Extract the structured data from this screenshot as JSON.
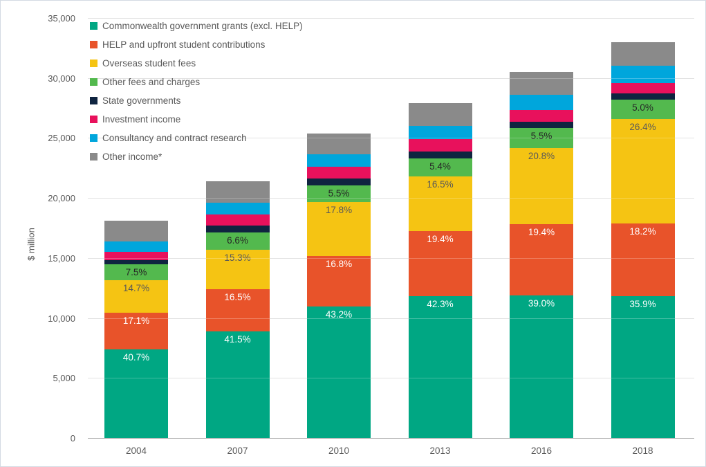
{
  "chart_data": {
    "type": "bar",
    "subtype": "stacked-column",
    "title": "",
    "ylabel": "$ million",
    "xlabel": "",
    "ylim": [
      0,
      35000
    ],
    "ytick_step": 5000,
    "ytick_labels": [
      "0",
      "5,000",
      "10,000",
      "15,000",
      "20,000",
      "25,000",
      "30,000",
      "35,000"
    ],
    "grid": true,
    "legend_position": "top-left-inside",
    "categories": [
      "2004",
      "2007",
      "2010",
      "2013",
      "2016",
      "2018"
    ],
    "totals": [
      18100,
      21400,
      25300,
      27900,
      30500,
      33000
    ],
    "series": [
      {
        "name": "Commonwealth government grants (excl. HELP)",
        "color": "#00a783",
        "label_color": "#ffffff",
        "pct": [
          40.7,
          41.5,
          43.2,
          42.3,
          39.0,
          35.9
        ],
        "labels": [
          "40.7%",
          "41.5%",
          "43.2%",
          "42.3%",
          "39.0%",
          "35.9%"
        ]
      },
      {
        "name": "HELP and upfront student contributions",
        "color": "#e8532a",
        "label_color": "#ffffff",
        "pct": [
          17.1,
          16.5,
          16.8,
          19.4,
          19.4,
          18.2
        ],
        "labels": [
          "17.1%",
          "16.5%",
          "16.8%",
          "19.4%",
          "19.4%",
          "18.2%"
        ]
      },
      {
        "name": "Overseas student fees",
        "color": "#f5c413",
        "label_color": "#595959",
        "pct": [
          14.7,
          15.3,
          17.8,
          16.5,
          20.8,
          26.4
        ],
        "labels": [
          "14.7%",
          "15.3%",
          "17.8%",
          "16.5%",
          "20.8%",
          "26.4%"
        ]
      },
      {
        "name": "Other fees and charges",
        "color": "#53b94e",
        "label_color": "#262626",
        "pct": [
          7.5,
          6.6,
          5.5,
          5.4,
          5.5,
          5.0
        ],
        "labels": [
          "7.5%",
          "6.6%",
          "5.5%",
          "5.4%",
          "5.5%",
          "5.0%"
        ]
      },
      {
        "name": "State governments",
        "color": "#0f2440",
        "label_color": "#ffffff",
        "pct": [
          2.0,
          2.7,
          2.1,
          1.9,
          1.7,
          1.6
        ],
        "labels": null
      },
      {
        "name": "Investment income",
        "color": "#e8115c",
        "label_color": "#ffffff",
        "pct": [
          3.7,
          4.4,
          4.0,
          3.8,
          3.3,
          2.6
        ],
        "labels": null
      },
      {
        "name": "Consultancy and contract research",
        "color": "#00a6dc",
        "label_color": "#ffffff",
        "pct": [
          4.8,
          4.7,
          4.1,
          3.9,
          4.0,
          4.3
        ],
        "labels": null
      },
      {
        "name": "Other income*",
        "color": "#8a8a8a",
        "label_color": "#ffffff",
        "pct": [
          9.5,
          8.4,
          6.7,
          6.9,
          6.3,
          6.0
        ],
        "labels": null
      }
    ]
  }
}
